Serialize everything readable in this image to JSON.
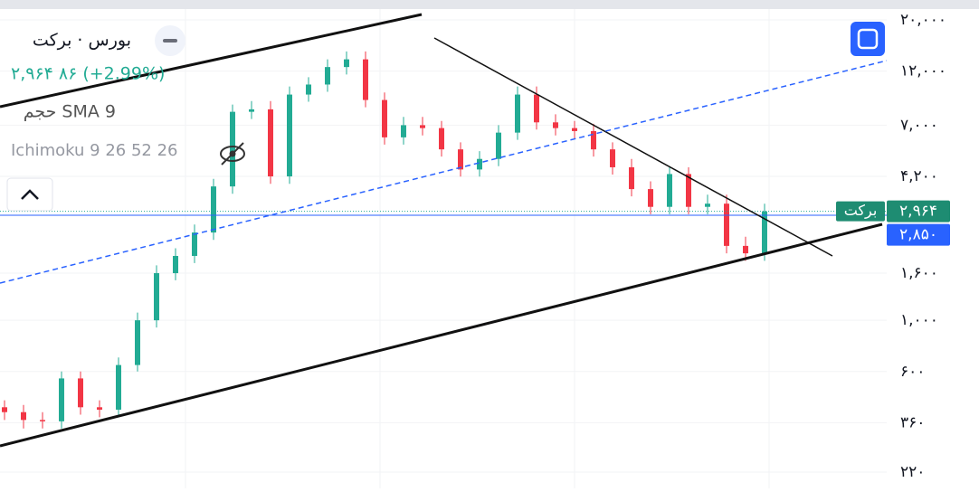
{
  "header": {
    "symbol": "بورس · برکت",
    "quote": "۲,۹۶۴ ۸۶ (+2.99%)",
    "volume_indicator": "حجم SMA 9",
    "ichimoku": "Ichimoku 9 26 52 26"
  },
  "chart_data": {
    "type": "candlestick",
    "yscale": "log",
    "open": [
      420,
      400,
      370,
      365,
      560,
      420,
      410,
      640,
      1000,
      1600,
      1900,
      2400,
      3800,
      8000,
      8200,
      4200,
      9500,
      10500,
      12500,
      13500,
      9000,
      6200,
      7000,
      6800,
      5500,
      4500,
      5000,
      6500,
      9500,
      7200,
      6800,
      6600,
      5500,
      4600,
      3700,
      3100,
      4300,
      3100,
      3200,
      2100,
      1950
    ],
    "high": [
      450,
      430,
      400,
      600,
      600,
      450,
      690,
      1080,
      1730,
      2050,
      2600,
      4100,
      8600,
      8900,
      8900,
      10300,
      11300,
      13500,
      14600,
      14600,
      9700,
      7600,
      7600,
      7300,
      5900,
      5400,
      7000,
      10300,
      10300,
      7800,
      7300,
      7100,
      5900,
      5000,
      4000,
      4600,
      4600,
      3500,
      3500,
      2300,
      3200
    ],
    "low": [
      370,
      340,
      340,
      340,
      390,
      380,
      380,
      600,
      930,
      1490,
      1770,
      2230,
      3530,
      7440,
      3900,
      3900,
      8840,
      9770,
      11600,
      8370,
      5770,
      5770,
      6320,
      5120,
      4190,
      4190,
      4650,
      6050,
      6700,
      6320,
      6140,
      5120,
      4280,
      3440,
      2880,
      2880,
      2880,
      2880,
      1950,
      1810,
      1810
    ],
    "close": [
      400,
      370,
      365,
      560,
      420,
      410,
      640,
      1000,
      1600,
      1900,
      2400,
      3800,
      8000,
      8200,
      4200,
      9500,
      10500,
      12500,
      13500,
      9000,
      6200,
      7000,
      6800,
      5500,
      4500,
      5000,
      6500,
      9500,
      7200,
      6800,
      6600,
      5500,
      4600,
      3700,
      3100,
      4300,
      3100,
      3200,
      2100,
      1950,
      2964
    ],
    "up_color": "#22ab94",
    "down_color": "#f23645",
    "ylim": [
      187,
      22700
    ],
    "yticks": [
      {
        "value": 20000,
        "label": "۲۰,۰۰۰"
      },
      {
        "value": 12000,
        "label": "۱۲,۰۰۰"
      },
      {
        "value": 7000,
        "label": "۷,۰۰۰"
      },
      {
        "value": 4200,
        "label": "۴,۲۰۰"
      },
      {
        "value": 1600,
        "label": "۱,۶۰۰"
      },
      {
        "value": 1000,
        "label": "۱,۰۰۰"
      },
      {
        "value": 600,
        "label": "۶۰۰"
      },
      {
        "value": 360,
        "label": "۳۶۰"
      },
      {
        "value": 220,
        "label": "۲۲۰"
      }
    ],
    "grid": true,
    "last_price": {
      "value": 2964,
      "label": "۲,۹۶۴",
      "name": "برکت"
    },
    "reference_price": {
      "value": 2850,
      "label": "۲,۸۵۰"
    }
  }
}
